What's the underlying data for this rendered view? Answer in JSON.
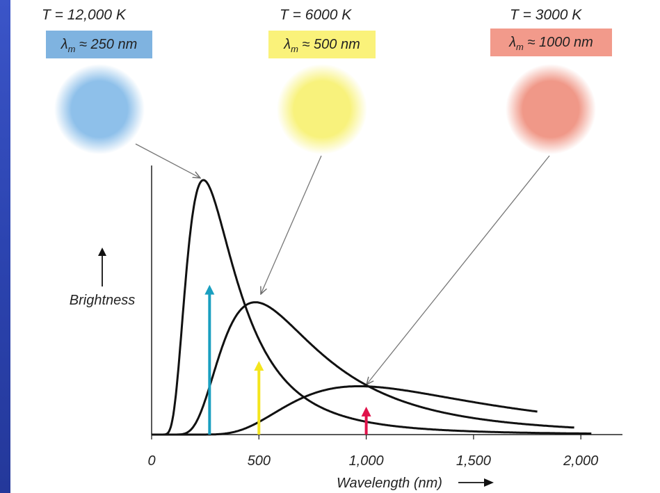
{
  "chart_data": {
    "type": "line",
    "xlabel": "Wavelength (nm)",
    "ylabel": "Brightness",
    "xlim": [
      0,
      2200
    ],
    "x_ticks": [
      "0",
      "500",
      "1,000",
      "1,500",
      "2,000"
    ],
    "x_tick_values": [
      0,
      500,
      1000,
      1500,
      2000
    ],
    "series": [
      {
        "name": "T = 12,000 K",
        "peak_nm": 250,
        "peak_brightness": 1.0,
        "end_nm": 2050,
        "color": "#111111"
      },
      {
        "name": "T = 6000 K",
        "peak_nm": 500,
        "peak_brightness": 0.52,
        "end_nm": 1970,
        "color": "#111111"
      },
      {
        "name": "T = 3000 K",
        "peak_nm": 1000,
        "peak_brightness": 0.19,
        "end_nm": 1800,
        "color": "#111111"
      }
    ],
    "markers": [
      {
        "label": "λm ≈ 250 nm",
        "x": 270,
        "height": 0.59,
        "color": "#1a9fc0"
      },
      {
        "label": "λm ≈ 500 nm",
        "x": 500,
        "height": 0.29,
        "color": "#f4e51d"
      },
      {
        "label": "λm ≈ 1000 nm",
        "x": 1000,
        "height": 0.11,
        "color": "#e0124a"
      }
    ],
    "stars": [
      {
        "temp": "T = 12,000 K",
        "lambda_sym": "λ",
        "lambda_sub": "m",
        "lambda_val": "≈ 250 nm",
        "box_color": "#7fb3e0",
        "star_color": "#8ec0ea"
      },
      {
        "temp": "T = 6000 K",
        "lambda_sym": "λ",
        "lambda_sub": "m",
        "lambda_val": "≈ 500 nm",
        "box_color": "#faf27a",
        "star_color": "#f8f27c"
      },
      {
        "temp": "T = 3000 K",
        "lambda_sym": "λ",
        "lambda_sub": "m",
        "lambda_val": "≈ 1000 nm",
        "box_color": "#f29a8b",
        "star_color": "#f09888"
      }
    ]
  }
}
